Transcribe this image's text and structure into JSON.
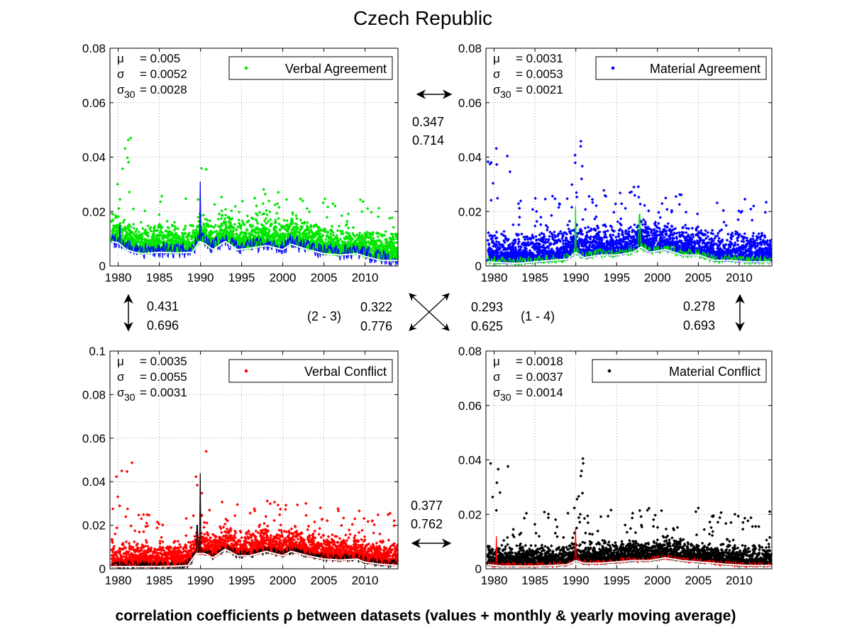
{
  "title": "Czech Republic",
  "footer": "correlation coefficients ρ between datasets (values + monthly & yearly moving average)",
  "chart_data": [
    {
      "type": "scatter",
      "legend": "Verbal Agreement",
      "legend_position": "top-right",
      "grid": true,
      "xlim": [
        1979,
        2014
      ],
      "ylim": [
        0,
        0.08
      ],
      "xticks": [
        "1980",
        "1985",
        "1990",
        "1995",
        "2000",
        "2005",
        "2010"
      ],
      "yticks": [
        "0",
        "0.02",
        "0.04",
        "0.06",
        "0.08"
      ],
      "stats": {
        "mu": "= 0.005",
        "sigma": "= 0.0052",
        "sigma30": "= 0.0028"
      },
      "colors": {
        "points": "#00e600",
        "monthly": "#0000ff",
        "yearly": "#ffffff"
      },
      "level": {
        "base": 0.005,
        "spread": 0.0052,
        "tail": 0.026
      },
      "moving_average": {
        "x": [
          1979.2,
          1980,
          1981,
          1982,
          1983,
          1985,
          1987,
          1989,
          1989.9,
          1990.6,
          1991.5,
          1993,
          1994.5,
          1996,
          1998,
          2000,
          2001,
          2003,
          2005,
          2007,
          2009,
          2010,
          2012,
          2014
        ],
        "y": [
          0.009,
          0.0085,
          0.006,
          0.005,
          0.0045,
          0.005,
          0.0048,
          0.005,
          0.009,
          0.008,
          0.006,
          0.009,
          0.006,
          0.0065,
          0.0075,
          0.006,
          0.008,
          0.006,
          0.0045,
          0.004,
          0.0045,
          0.0035,
          0.002,
          0.002
        ]
      },
      "spikes": [
        {
          "x": 1990,
          "y": 0.031
        },
        {
          "x": 1980.2,
          "y": 0.015
        }
      ]
    },
    {
      "type": "scatter",
      "legend": "Material Agreement",
      "legend_position": "top-right",
      "grid": true,
      "xlim": [
        1979,
        2014
      ],
      "ylim": [
        0,
        0.08
      ],
      "xticks": [
        "1980",
        "1985",
        "1990",
        "1995",
        "2000",
        "2005",
        "2010"
      ],
      "yticks": [
        "0",
        "0.02",
        "0.04",
        "0.06",
        "0.08"
      ],
      "stats": {
        "mu": "= 0.0031",
        "sigma": "= 0.0053",
        "sigma30": "= 0.0021"
      },
      "colors": {
        "points": "#0000ff",
        "monthly": "#00e600",
        "yearly": "#ffffff"
      },
      "level": {
        "base": 0.0031,
        "spread": 0.0053,
        "tail": 0.03
      },
      "moving_average": {
        "x": [
          1979.2,
          1981,
          1983,
          1985,
          1987,
          1989,
          1990,
          1991,
          1993,
          1995,
          1997,
          1998,
          1999,
          2001,
          2003,
          2005,
          2007,
          2009,
          2011,
          2014
        ],
        "y": [
          0.0015,
          0.0012,
          0.001,
          0.0015,
          0.002,
          0.0025,
          0.005,
          0.003,
          0.004,
          0.004,
          0.005,
          0.007,
          0.005,
          0.006,
          0.004,
          0.004,
          0.002,
          0.002,
          0.0015,
          0.0015
        ]
      },
      "spikes": [
        {
          "x": 1990,
          "y": 0.022
        },
        {
          "x": 1997.8,
          "y": 0.019
        }
      ]
    },
    {
      "type": "scatter",
      "legend": "Verbal Conflict",
      "legend_position": "top-right",
      "grid": true,
      "xlim": [
        1979,
        2014
      ],
      "ylim": [
        0,
        0.1
      ],
      "xticks": [
        "1980",
        "1985",
        "1990",
        "1995",
        "2000",
        "2005",
        "2010"
      ],
      "yticks": [
        "0",
        "0.02",
        "0.04",
        "0.06",
        "0.08",
        "0.1"
      ],
      "stats": {
        "mu": "= 0.0035",
        "sigma": "= 0.0055",
        "sigma30": "= 0.0031"
      },
      "colors": {
        "points": "#ff0000",
        "monthly": "#000000",
        "yearly": "#ffffff"
      },
      "level": {
        "base": 0.0035,
        "spread": 0.0055,
        "tail": 0.03
      },
      "moving_average": {
        "x": [
          1979.2,
          1981,
          1983,
          1985,
          1987,
          1988.5,
          1989.5,
          1990.5,
          1991.5,
          1993,
          1994.5,
          1996,
          1998,
          2000,
          2001,
          2003,
          2005,
          2007,
          2009,
          2010,
          2012,
          2014
        ],
        "y": [
          0.001,
          0.001,
          0.001,
          0.001,
          0.0012,
          0.0015,
          0.007,
          0.007,
          0.005,
          0.009,
          0.006,
          0.006,
          0.008,
          0.006,
          0.008,
          0.006,
          0.0045,
          0.004,
          0.0045,
          0.003,
          0.002,
          0.0015
        ]
      },
      "spikes": [
        {
          "x": 1990,
          "y": 0.044
        },
        {
          "x": 1989.6,
          "y": 0.02
        }
      ]
    },
    {
      "type": "scatter",
      "legend": "Material Conflict",
      "legend_position": "top-right",
      "grid": true,
      "xlim": [
        1979,
        2014
      ],
      "ylim": [
        0,
        0.08
      ],
      "xticks": [
        "1980",
        "1985",
        "1990",
        "1995",
        "2000",
        "2005",
        "2010"
      ],
      "yticks": [
        "0",
        "0.02",
        "0.04",
        "0.06",
        "0.08"
      ],
      "stats": {
        "mu": "= 0.0018",
        "sigma": "= 0.0037",
        "sigma30": "= 0.0014"
      },
      "colors": {
        "points": "#000000",
        "monthly": "#ff0000",
        "yearly": "#ffffff"
      },
      "level": {
        "base": 0.0018,
        "spread": 0.0037,
        "tail": 0.025
      },
      "moving_average": {
        "x": [
          1979.2,
          1981,
          1983,
          1985,
          1987,
          1989,
          1990,
          1991,
          1993,
          1995,
          1997,
          1999,
          2001,
          2003,
          2005,
          2007,
          2009,
          2011,
          2014
        ],
        "y": [
          0.0015,
          0.001,
          0.001,
          0.001,
          0.0012,
          0.0015,
          0.003,
          0.002,
          0.002,
          0.0025,
          0.003,
          0.003,
          0.004,
          0.003,
          0.0025,
          0.002,
          0.0015,
          0.0012,
          0.0012
        ]
      },
      "spikes": [
        {
          "x": 1990,
          "y": 0.015
        },
        {
          "x": 1980.3,
          "y": 0.012
        }
      ]
    }
  ],
  "correlations": {
    "top": {
      "a": "0.347",
      "b": "0.714"
    },
    "bottom": {
      "a": "0.377",
      "b": "0.762"
    },
    "left": {
      "a": "0.431",
      "b": "0.696"
    },
    "right": {
      "a": "0.278",
      "b": "0.693"
    },
    "diag_23": {
      "label": "(2 - 3)",
      "a": "0.322",
      "b": "0.776"
    },
    "diag_14": {
      "label": "(1 - 4)",
      "a": "0.293",
      "b": "0.625"
    }
  }
}
